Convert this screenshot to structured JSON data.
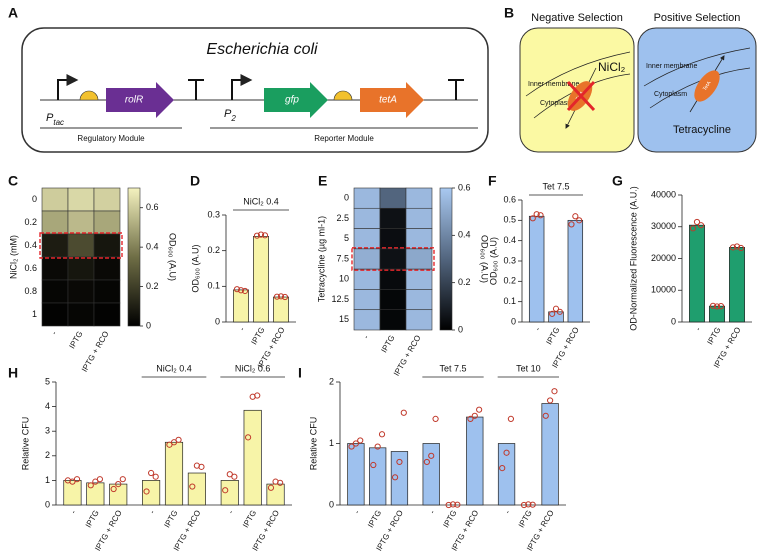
{
  "diagrams": {
    "A": {
      "panel": "A",
      "title": "Escherichia coli",
      "promoter1": {
        "main": "P",
        "sub": "tac"
      },
      "gene1": "rolR",
      "promoter2": {
        "main": "P",
        "sub": "2"
      },
      "gene2": "gfp",
      "gene3": "tetA",
      "module1": "Regulatory Module",
      "module2": "Reporter Module"
    },
    "B": {
      "panel": "B",
      "negative": {
        "title": "Negative Selection",
        "membrane": "Inner membrane",
        "cytoplasm": "Cytoplasm",
        "agent": "NiCl₂",
        "protein": "TetA"
      },
      "positive": {
        "title": "Positive Selection",
        "membrane": "Inner membrane",
        "cytoplasm": "Cytoplasm",
        "agent": "Tetracycline",
        "protein": "TetA"
      }
    }
  },
  "chart_data": [
    {
      "type": "heatmap",
      "panel": "C",
      "ylabel": "NiCl₂ (mM)",
      "rows": [
        0,
        0.2,
        0.4,
        0.6,
        0.8,
        1
      ],
      "columns": [
        "-",
        "IPTG",
        "IPTG + RCO"
      ],
      "values": [
        [
          0.6,
          0.63,
          0.61
        ],
        [
          0.5,
          0.55,
          0.5
        ],
        [
          0.09,
          0.24,
          0.07
        ],
        [
          0.03,
          0.07,
          0.03
        ],
        [
          0.02,
          0.03,
          0.02
        ],
        [
          0.01,
          0.02,
          0.01
        ]
      ],
      "highlight": 0.4,
      "colorbar": {
        "lim": [
          0,
          0.7
        ],
        "ticks": [
          0,
          0.2,
          0.4,
          0.6
        ],
        "label": "OD₆₀₀ (A.U)",
        "colors": [
          "#000000",
          "#6f6e46",
          "#f4f2bf"
        ]
      }
    },
    {
      "type": "bar",
      "panel": "D",
      "ylabel": "OD₆₀₀ (A.U)",
      "title": "NiCl₂ 0.4",
      "categories": [
        "-",
        "IPTG",
        "IPTG + RCO"
      ],
      "values": [
        0.09,
        0.24,
        0.07
      ],
      "points": [
        [
          0.092,
          0.089,
          0.087
        ],
        [
          0.242,
          0.245,
          0.243
        ],
        [
          0.071,
          0.072,
          0.07
        ]
      ],
      "ylim": [
        0,
        0.3
      ],
      "yticks": [
        0,
        0.1,
        0.2,
        0.3
      ],
      "color": "#f7f4a8",
      "point_color": "#c0392b"
    },
    {
      "type": "heatmap",
      "panel": "E",
      "ylabel": "Tetracycline (µg ml-1)",
      "rows": [
        0,
        2.5,
        5,
        7.5,
        10,
        12.5,
        15
      ],
      "columns": [
        "-",
        "IPTG",
        "IPTG + RCO"
      ],
      "values": [
        [
          0.55,
          0.3,
          0.55
        ],
        [
          0.55,
          0.05,
          0.55
        ],
        [
          0.55,
          0.04,
          0.55
        ],
        [
          0.52,
          0.05,
          0.5
        ],
        [
          0.55,
          0.03,
          0.55
        ],
        [
          0.55,
          0.02,
          0.55
        ],
        [
          0.55,
          0.02,
          0.55
        ]
      ],
      "highlight": 7.5,
      "colorbar": {
        "lim": [
          0,
          0.6
        ],
        "ticks": [
          0,
          0.2,
          0.4,
          0.6
        ],
        "label": "OD₆₀₀ (A.U)",
        "colors": [
          "#000000",
          "#52657e",
          "#a9c9f1"
        ]
      }
    },
    {
      "type": "bar",
      "panel": "F",
      "ylabel": "OD₆₀₀ (A.U)",
      "title": "Tet  7.5",
      "categories": [
        "-",
        "IPTG",
        "IPTG + RCO"
      ],
      "values": [
        0.52,
        0.05,
        0.5
      ],
      "points": [
        [
          0.51,
          0.53,
          0.525
        ],
        [
          0.04,
          0.065,
          0.05
        ],
        [
          0.48,
          0.52,
          0.5
        ]
      ],
      "ylim": [
        0,
        0.6
      ],
      "yticks": [
        0,
        0.1,
        0.2,
        0.3,
        0.4,
        0.5,
        0.6
      ],
      "color": "#9ec1ee",
      "point_color": "#c0392b"
    },
    {
      "type": "bar",
      "panel": "G",
      "ylabel": "OD-Normalized Fluorescence (A.U.)",
      "categories": [
        "-",
        "IPTG",
        "IPTG + RCO"
      ],
      "values": [
        30500,
        5000,
        23500
      ],
      "points": [
        [
          29500,
          31500,
          30500
        ],
        [
          5100,
          4900,
          5000
        ],
        [
          23500,
          23800,
          23300
        ]
      ],
      "ylim": [
        0,
        40000
      ],
      "yticks": [
        0,
        10000,
        20000,
        30000,
        40000
      ],
      "color": "#1f9e6e",
      "point_color": "#c0392b"
    },
    {
      "type": "bar",
      "panel": "H",
      "ylabel": "Relative CFU",
      "groups": [
        {
          "categories": [
            "-",
            "IPTG",
            "IPTG + RCO"
          ],
          "values": [
            1,
            0.9,
            0.85
          ],
          "points": [
            [
              1.0,
              0.95,
              1.05
            ],
            [
              0.8,
              0.95,
              1.05
            ],
            [
              0.65,
              0.85,
              1.05
            ]
          ]
        },
        {
          "title": "NiCl₂ 0.4",
          "categories": [
            "-",
            "IPTG",
            "IPTG + RCO"
          ],
          "values": [
            1,
            2.55,
            1.3
          ],
          "points": [
            [
              0.55,
              1.3,
              1.15
            ],
            [
              2.45,
              2.55,
              2.65
            ],
            [
              0.75,
              1.6,
              1.55
            ]
          ]
        },
        {
          "title": "NiCl₂ 0.6",
          "categories": [
            "-",
            "IPTG",
            "IPTG + RCO"
          ],
          "values": [
            1,
            3.85,
            0.85
          ],
          "points": [
            [
              0.6,
              1.25,
              1.15
            ],
            [
              2.75,
              4.4,
              4.45
            ],
            [
              0.7,
              0.95,
              0.9
            ]
          ]
        }
      ],
      "ylim": [
        0,
        5
      ],
      "yticks": [
        0,
        1,
        2,
        3,
        4,
        5
      ],
      "color": "#f7f4a8",
      "point_color": "#c0392b"
    },
    {
      "type": "bar",
      "panel": "I",
      "ylabel": "Relative CFU",
      "groups": [
        {
          "categories": [
            "-",
            "IPTG",
            "IPTG + RCO"
          ],
          "values": [
            1,
            0.93,
            0.87
          ],
          "points": [
            [
              0.95,
              1.0,
              1.05
            ],
            [
              0.65,
              0.95,
              1.15
            ],
            [
              0.45,
              0.7,
              1.5
            ]
          ]
        },
        {
          "title": "Tet 7.5",
          "categories": [
            "-",
            "IPTG",
            "IPTG + RCO"
          ],
          "values": [
            1,
            0,
            1.43
          ],
          "points": [
            [
              0.7,
              0.8,
              1.4
            ],
            [
              0,
              0.01,
              0.005
            ],
            [
              1.4,
              1.45,
              1.55
            ]
          ]
        },
        {
          "title": "Tet 10",
          "categories": [
            "-",
            "IPTG",
            "IPTG + RCO"
          ],
          "values": [
            1,
            0,
            1.65
          ],
          "points": [
            [
              0.6,
              0.85,
              1.4
            ],
            [
              0,
              0.01,
              0.005
            ],
            [
              1.45,
              1.7,
              1.85
            ]
          ]
        }
      ],
      "ylim": [
        0,
        2
      ],
      "yticks": [
        0,
        1,
        2
      ],
      "color": "#9ec1ee",
      "point_color": "#c0392b"
    }
  ]
}
